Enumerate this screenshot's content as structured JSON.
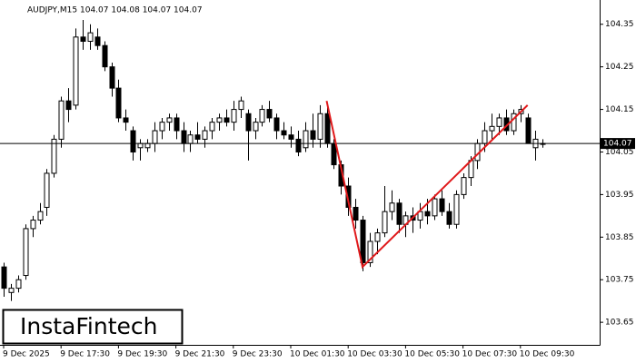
{
  "chart_data": {
    "type": "candlestick",
    "title": "AUDJPY,M15  104.07 104.08 104.07 104.07",
    "categories": [
      "9 Dec 2025",
      null,
      null,
      null,
      null,
      null,
      null,
      null,
      "9 Dec 17:30",
      null,
      null,
      null,
      null,
      null,
      null,
      null,
      "9 Dec 19:30",
      null,
      null,
      null,
      null,
      null,
      null,
      null,
      "9 Dec 21:30",
      null,
      null,
      null,
      null,
      null,
      null,
      null,
      "9 Dec 23:30",
      null,
      null,
      null,
      null,
      null,
      null,
      null,
      "10 Dec 01:30",
      null,
      null,
      null,
      null,
      null,
      null,
      null,
      "10 Dec 03:30",
      null,
      null,
      null,
      null,
      null,
      null,
      null,
      "10 Dec 05:30",
      null,
      null,
      null,
      null,
      null,
      null,
      null,
      "10 Dec 07:30",
      null,
      null,
      null,
      null,
      null,
      null,
      null,
      "10 Dec 09:30",
      null,
      null,
      null
    ],
    "open": [
      103.78,
      103.72,
      103.73,
      103.76,
      103.87,
      103.89,
      103.92,
      104.0,
      104.08,
      104.17,
      104.16,
      104.32,
      104.31,
      104.32,
      104.3,
      104.25,
      104.2,
      104.13,
      104.1,
      104.06,
      104.06,
      104.07,
      104.1,
      104.12,
      104.13,
      104.1,
      104.07,
      104.09,
      104.08,
      104.1,
      104.12,
      104.13,
      104.12,
      104.15,
      104.14,
      104.1,
      104.12,
      104.15,
      104.13,
      104.1,
      104.09,
      104.08,
      104.06,
      104.1,
      104.08,
      104.14,
      104.07,
      104.02,
      103.97,
      103.92,
      103.89,
      103.79,
      103.84,
      103.86,
      103.91,
      103.93,
      103.88,
      103.9,
      103.89,
      103.91,
      103.9,
      103.94,
      103.91,
      103.88,
      103.95,
      103.99,
      104.03,
      104.07,
      104.1,
      104.11,
      104.13,
      104.1,
      104.14,
      104.13,
      104.06,
      104.07
    ],
    "high": [
      103.79,
      103.74,
      103.76,
      103.88,
      103.9,
      103.93,
      104.01,
      104.09,
      104.18,
      104.2,
      104.34,
      104.36,
      104.35,
      104.34,
      104.31,
      104.26,
      104.22,
      104.15,
      104.11,
      104.08,
      104.08,
      104.12,
      104.13,
      104.14,
      104.14,
      104.12,
      104.1,
      104.12,
      104.11,
      104.13,
      104.14,
      104.15,
      104.17,
      104.18,
      104.15,
      104.13,
      104.16,
      104.17,
      104.14,
      104.12,
      104.11,
      104.1,
      104.12,
      104.14,
      104.16,
      104.16,
      104.08,
      104.03,
      103.99,
      103.94,
      103.9,
      103.86,
      103.87,
      103.97,
      103.96,
      103.94,
      103.91,
      103.92,
      103.93,
      103.94,
      103.95,
      103.96,
      103.93,
      103.96,
      104.0,
      104.04,
      104.08,
      104.12,
      104.14,
      104.14,
      104.15,
      104.15,
      104.16,
      104.14,
      104.1,
      104.08
    ],
    "low": [
      103.71,
      103.7,
      103.72,
      103.75,
      103.85,
      103.88,
      103.9,
      103.99,
      104.06,
      104.12,
      104.15,
      104.29,
      104.29,
      104.29,
      104.24,
      104.18,
      104.12,
      104.1,
      104.03,
      104.03,
      104.05,
      104.05,
      104.08,
      104.1,
      104.08,
      104.05,
      104.05,
      104.07,
      104.06,
      104.08,
      104.1,
      104.11,
      104.1,
      104.13,
      104.03,
      104.08,
      104.11,
      104.12,
      104.08,
      104.08,
      104.06,
      104.04,
      104.05,
      104.06,
      104.06,
      104.06,
      104.01,
      103.95,
      103.9,
      103.87,
      103.77,
      103.78,
      103.81,
      103.85,
      103.89,
      103.86,
      103.85,
      103.86,
      103.87,
      103.88,
      103.89,
      103.9,
      103.87,
      103.87,
      103.94,
      103.97,
      104.01,
      104.05,
      104.08,
      104.09,
      104.09,
      104.09,
      104.12,
      104.07,
      104.03,
      104.06
    ],
    "close": [
      103.73,
      103.73,
      103.75,
      103.87,
      103.89,
      103.91,
      104.0,
      104.08,
      104.17,
      104.15,
      104.32,
      104.31,
      104.33,
      104.3,
      104.25,
      104.2,
      104.13,
      104.12,
      104.05,
      104.07,
      104.07,
      104.1,
      104.12,
      104.13,
      104.1,
      104.07,
      104.09,
      104.08,
      104.1,
      104.12,
      104.13,
      104.12,
      104.15,
      104.17,
      104.1,
      104.12,
      104.15,
      104.13,
      104.1,
      104.09,
      104.08,
      104.05,
      104.1,
      104.08,
      104.14,
      104.07,
      104.02,
      103.97,
      103.92,
      103.89,
      103.79,
      103.84,
      103.86,
      103.91,
      103.93,
      103.88,
      103.9,
      103.89,
      103.91,
      103.9,
      103.94,
      103.91,
      103.88,
      103.95,
      103.99,
      104.03,
      104.07,
      104.1,
      104.11,
      104.13,
      104.1,
      104.14,
      104.15,
      104.07,
      104.08,
      104.07
    ],
    "up_color": "#ffffff",
    "down_color": "#000000",
    "ylim": [
      103.597,
      104.407
    ],
    "yticks": [
      104.35,
      104.25,
      104.15,
      104.05,
      103.95,
      103.85,
      103.75,
      103.65
    ],
    "current_price": 104.07,
    "pattern": {
      "color": "#e0191b",
      "points": [
        {
          "x": 45,
          "y": 104.17
        },
        {
          "x": 50,
          "y": 103.78
        },
        {
          "x": 73,
          "y": 104.16
        }
      ]
    }
  },
  "logo": "InstaFintech"
}
